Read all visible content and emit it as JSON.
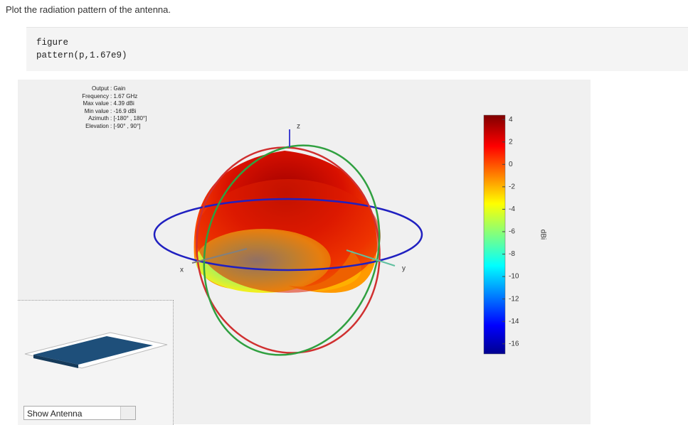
{
  "intro": "Plot the radiation pattern of the antenna.",
  "code": [
    "figure",
    "pattern(p,1.67e9)"
  ],
  "info": [
    {
      "key": "Output",
      "value": ": Gain"
    },
    {
      "key": "Frequency",
      "value": ": 1.67 GHz"
    },
    {
      "key": "Max value",
      "value": ": 4.39 dBi"
    },
    {
      "key": "Min value",
      "value": ": -16.9 dBi"
    },
    {
      "key": "Azimuth",
      "value": ": [-180° , 180°]"
    },
    {
      "key": "Elevation",
      "value": ": [-90° , 90°]"
    }
  ],
  "axes": {
    "x": "x",
    "y": "y",
    "z": "z"
  },
  "colorbar": {
    "label": "dBi",
    "lim": [
      -16.9,
      4.39
    ],
    "ticks": [
      4,
      2,
      0,
      -2,
      -4,
      -6,
      -8,
      -10,
      -12,
      -14,
      -16
    ]
  },
  "dropdown": "Show Antenna"
}
